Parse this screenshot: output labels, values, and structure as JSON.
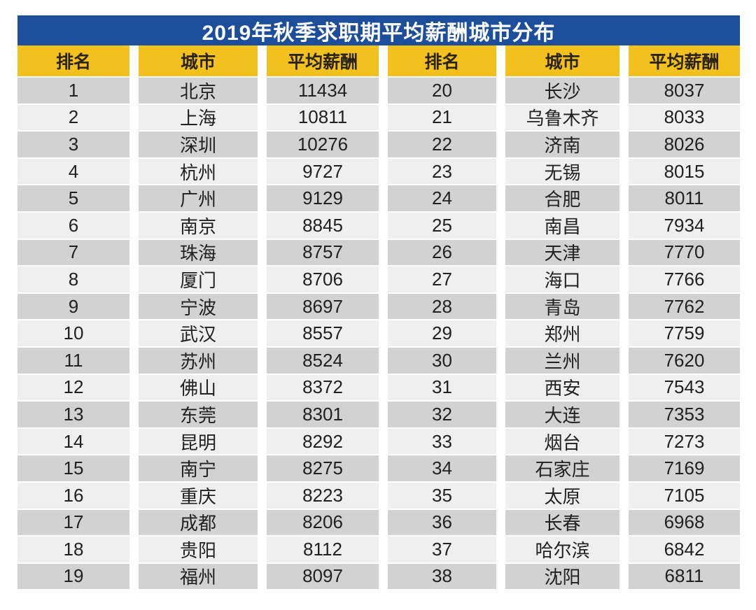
{
  "title": "2019年秋季求职期平均薪酬城市分布",
  "colors": {
    "title_bg": "#1d4e9c",
    "title_text": "#ffffff",
    "header_bg": "#f2c11d",
    "header_text": "#2b2416",
    "row_dark": "#d2d2d2",
    "row_light": "#efefef",
    "cell_text": "#212121"
  },
  "table": {
    "headers": [
      "排名",
      "城市",
      "平均薪酬",
      "排名",
      "城市",
      "平均薪酬"
    ]
  },
  "chart_data": {
    "type": "table",
    "title": "2019年秋季求职期平均薪酬城市分布",
    "columns": [
      "排名",
      "城市",
      "平均薪酬"
    ],
    "layout": "two-column split: ranks 1-19 left, ranks 20-38 right, alternating gray row shading",
    "rows": [
      [
        1,
        "北京",
        11434
      ],
      [
        2,
        "上海",
        10811
      ],
      [
        3,
        "深圳",
        10276
      ],
      [
        4,
        "杭州",
        9727
      ],
      [
        5,
        "广州",
        9129
      ],
      [
        6,
        "南京",
        8845
      ],
      [
        7,
        "珠海",
        8757
      ],
      [
        8,
        "厦门",
        8706
      ],
      [
        9,
        "宁波",
        8697
      ],
      [
        10,
        "武汉",
        8557
      ],
      [
        11,
        "苏州",
        8524
      ],
      [
        12,
        "佛山",
        8372
      ],
      [
        13,
        "东莞",
        8301
      ],
      [
        14,
        "昆明",
        8292
      ],
      [
        15,
        "南宁",
        8275
      ],
      [
        16,
        "重庆",
        8223
      ],
      [
        17,
        "成都",
        8206
      ],
      [
        18,
        "贵阳",
        8112
      ],
      [
        19,
        "福州",
        8097
      ],
      [
        20,
        "长沙",
        8037
      ],
      [
        21,
        "乌鲁木齐",
        8033
      ],
      [
        22,
        "济南",
        8026
      ],
      [
        23,
        "无锡",
        8015
      ],
      [
        24,
        "合肥",
        8011
      ],
      [
        25,
        "南昌",
        7934
      ],
      [
        26,
        "天津",
        7770
      ],
      [
        27,
        "海口",
        7766
      ],
      [
        28,
        "青岛",
        7762
      ],
      [
        29,
        "郑州",
        7759
      ],
      [
        30,
        "兰州",
        7620
      ],
      [
        31,
        "西安",
        7543
      ],
      [
        32,
        "大连",
        7353
      ],
      [
        33,
        "烟台",
        7273
      ],
      [
        34,
        "石家庄",
        7169
      ],
      [
        35,
        "太原",
        7105
      ],
      [
        36,
        "长春",
        6968
      ],
      [
        37,
        "哈尔滨",
        6842
      ],
      [
        38,
        "沈阳",
        6811
      ]
    ]
  }
}
